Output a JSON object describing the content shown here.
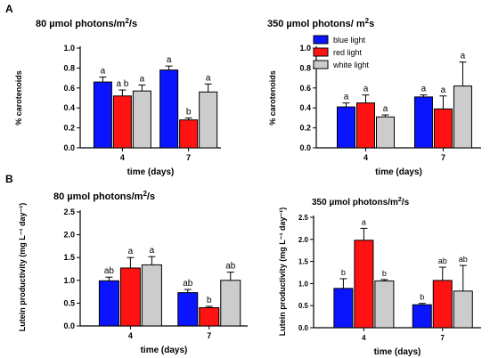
{
  "panel_labels": [
    "A",
    "B"
  ],
  "colors": {
    "blue": "#0a14ff",
    "red": "#ff1212",
    "white": "#cccccc"
  },
  "chart_data": [
    {
      "type": "bar",
      "panel": "A",
      "title_main": "80 µmol photons/m",
      "title_sup": "2",
      "title_tail": "/s",
      "ylabel": "% carotenoids",
      "xlabel": "time (days)",
      "ylim": [
        0,
        1.0
      ],
      "yticks": [
        "0.0",
        "0.2",
        "0.4",
        "0.6",
        "0.8",
        "1.0"
      ],
      "categories": [
        "4",
        "7"
      ],
      "series": [
        {
          "values": [
            0.66,
            0.78
          ],
          "errors": [
            0.05,
            0.04
          ],
          "letters": [
            "a",
            "a"
          ]
        },
        {
          "values": [
            0.52,
            0.28
          ],
          "errors": [
            0.06,
            0.02
          ],
          "letters": [
            "a b",
            "b"
          ]
        },
        {
          "values": [
            0.57,
            0.56
          ],
          "errors": [
            0.06,
            0.08
          ],
          "letters": [
            "a",
            "a"
          ]
        }
      ]
    },
    {
      "type": "bar",
      "panel": "A",
      "title_main": "350 µmol photons/ m",
      "title_sup": "2",
      "title_tail": "s",
      "ylabel": "% carotenoids",
      "xlabel": "time (days)",
      "ylim": [
        0,
        1.0
      ],
      "yticks": [
        "0.0",
        "0.2",
        "0.4",
        "0.6",
        "0.8",
        "1.0"
      ],
      "categories": [
        "4",
        "7"
      ],
      "legend": [
        "blue light",
        "red light",
        "white light"
      ],
      "series": [
        {
          "name": "blue light",
          "values": [
            0.41,
            0.51
          ],
          "errors": [
            0.04,
            0.02
          ],
          "letters": [
            "a",
            "a"
          ]
        },
        {
          "name": "red light",
          "values": [
            0.45,
            0.39
          ],
          "errors": [
            0.08,
            0.13
          ],
          "letters": [
            "a",
            "a"
          ]
        },
        {
          "name": "white light",
          "values": [
            0.31,
            0.62
          ],
          "errors": [
            0.02,
            0.24
          ],
          "letters": [
            "a",
            "a"
          ]
        }
      ]
    },
    {
      "type": "bar",
      "panel": "B",
      "title_main": "80 µmol photons/m",
      "title_sup": "2",
      "title_tail": "/s",
      "ylabel": "Lutein productivity (mg L⁻¹ day⁻¹)",
      "xlabel": "time (days)",
      "ylim": [
        0,
        2.5
      ],
      "yticks": [
        "0.0",
        "0.5",
        "1.0",
        "1.5",
        "2.0",
        "2.5"
      ],
      "categories": [
        "4",
        "7"
      ],
      "series": [
        {
          "values": [
            0.99,
            0.73
          ],
          "errors": [
            0.08,
            0.07
          ],
          "letters": [
            "ab",
            "ab"
          ]
        },
        {
          "values": [
            1.27,
            0.4
          ],
          "errors": [
            0.23,
            0.03
          ],
          "letters": [
            "a",
            "b"
          ]
        },
        {
          "values": [
            1.34,
            1.0
          ],
          "errors": [
            0.18,
            0.18
          ],
          "letters": [
            "a",
            "ab"
          ]
        }
      ]
    },
    {
      "type": "bar",
      "panel": "B",
      "title_main": "350 µmol photons/m",
      "title_sup": "2",
      "title_tail": "/s",
      "ylabel": "Lutein productivity (mg L⁻¹ day⁻¹)",
      "xlabel": "time (days)",
      "ylim": [
        0,
        2.5
      ],
      "yticks": [
        "0.0",
        "0.5",
        "1.0",
        "1.5",
        "2.0",
        "2.5"
      ],
      "categories": [
        "4",
        "7"
      ],
      "series": [
        {
          "values": [
            0.89,
            0.52
          ],
          "errors": [
            0.22,
            0.03
          ],
          "letters": [
            "b",
            "b"
          ]
        },
        {
          "values": [
            1.98,
            1.07
          ],
          "errors": [
            0.27,
            0.3
          ],
          "letters": [
            "a",
            "ab"
          ]
        },
        {
          "values": [
            1.06,
            0.83
          ],
          "errors": [
            0.03,
            0.58
          ],
          "letters": [
            "b",
            "ab"
          ]
        }
      ]
    }
  ]
}
